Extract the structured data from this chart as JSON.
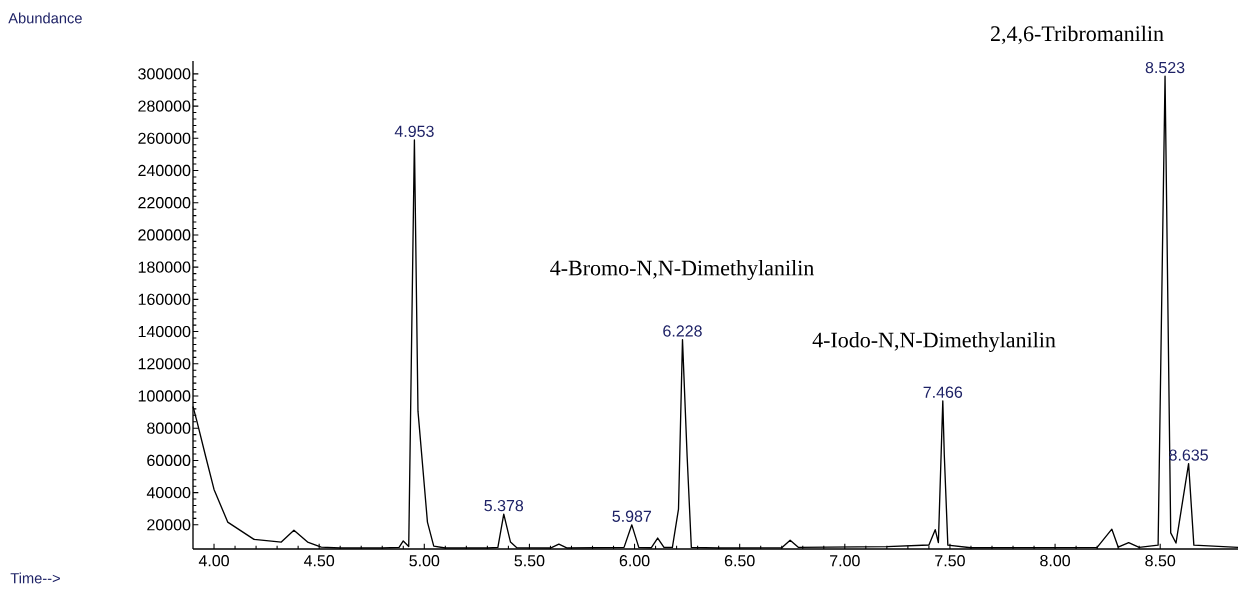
{
  "chart_data": {
    "type": "line",
    "x": [
      3.9,
      3.92,
      3.96,
      4.0,
      4.065,
      4.19,
      4.32,
      4.38,
      4.445,
      4.51,
      4.6,
      4.8,
      4.88,
      4.9,
      4.926,
      4.953,
      4.97,
      5.015,
      5.045,
      5.1,
      5.3,
      5.35,
      5.378,
      5.41,
      5.44,
      5.6,
      5.64,
      5.68,
      5.95,
      5.987,
      6.02,
      6.08,
      6.11,
      6.14,
      6.18,
      6.209,
      6.228,
      6.25,
      6.27,
      6.4,
      6.7,
      6.74,
      6.78,
      7.2,
      7.4,
      7.43,
      7.445,
      7.466,
      7.473,
      7.49,
      7.6,
      8.2,
      8.27,
      8.3,
      8.35,
      8.4,
      8.49,
      8.523,
      8.55,
      8.575,
      8.635,
      8.66,
      8.87
    ],
    "series": [
      {
        "color": "#000000",
        "values": [
          93500,
          83600,
          62600,
          42000,
          21700,
          11000,
          9300,
          16700,
          9300,
          6200,
          5600,
          5600,
          6000,
          10000,
          6500,
          259000,
          90600,
          21700,
          6800,
          5600,
          5600,
          6000,
          26600,
          9300,
          5800,
          5600,
          8000,
          5600,
          6000,
          20000,
          6000,
          5800,
          11800,
          6000,
          6000,
          29700,
          135000,
          62800,
          6000,
          5600,
          5800,
          10500,
          6000,
          6500,
          7500,
          17000,
          9000,
          97000,
          63800,
          7400,
          5800,
          6000,
          17300,
          6200,
          8900,
          6000,
          7400,
          298600,
          15000,
          8700,
          58000,
          7400,
          6000
        ]
      }
    ],
    "xlim": [
      3.9,
      8.87
    ],
    "ylim": [
      5000,
      308000
    ],
    "xticks": [
      {
        "value": 4,
        "label": "4.00"
      },
      {
        "value": 4.5,
        "label": "4.50"
      },
      {
        "value": 5,
        "label": "5.00"
      },
      {
        "value": 5.5,
        "label": "5.50"
      },
      {
        "value": 6,
        "label": "6.00"
      },
      {
        "value": 6.5,
        "label": "6.50"
      },
      {
        "value": 7,
        "label": "7.00"
      },
      {
        "value": 7.5,
        "label": "7.50"
      },
      {
        "value": 8,
        "label": "8.00"
      },
      {
        "value": 8.5,
        "label": "8.50"
      }
    ],
    "yticks": [
      20000,
      40000,
      60000,
      80000,
      100000,
      120000,
      140000,
      160000,
      180000,
      200000,
      220000,
      240000,
      260000,
      280000,
      300000
    ],
    "annotations": [
      {
        "text": "4.953",
        "x": 4.953,
        "y": 259000
      },
      {
        "text": "5.378",
        "x": 5.378,
        "y": 26600
      },
      {
        "text": "5.987",
        "x": 5.987,
        "y": 20000
      },
      {
        "text": "6.228",
        "x": 6.228,
        "y": 135000
      },
      {
        "text": "7.466",
        "x": 7.466,
        "y": 97000
      },
      {
        "text": "8.523",
        "x": 8.523,
        "y": 298600
      },
      {
        "text": "8.635",
        "x": 8.635,
        "y": 58000
      },
      "Abundance",
      "Time-->",
      "4-Bromo-N,N-Dimethylanilin",
      "4-Iodo-N,N-Dimethylanilin",
      "2,4,6-Tribromanilin"
    ],
    "grid": false,
    "legend": false,
    "marker": "none",
    "line_style": "solid"
  }
}
